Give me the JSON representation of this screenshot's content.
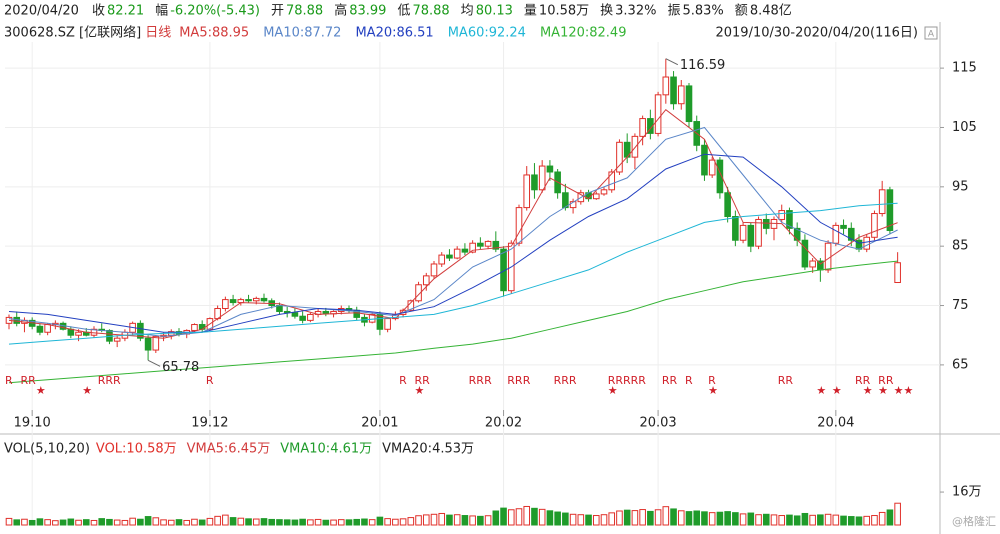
{
  "chart_data": {
    "type": "candlestick",
    "header": [
      {
        "label": "2020/04/20",
        "value": "",
        "color": "#222"
      },
      {
        "label": "收",
        "value": "82.21",
        "color": "#1a9a1a"
      },
      {
        "label": "幅",
        "value": "-6.20%(-5.43)",
        "color": "#1a9a1a"
      },
      {
        "label": "开",
        "value": "78.88",
        "color": "#1a9a1a"
      },
      {
        "label": "高",
        "value": "83.99",
        "color": "#1a9a1a"
      },
      {
        "label": "低",
        "value": "78.88",
        "color": "#1a9a1a"
      },
      {
        "label": "均",
        "value": "80.13",
        "color": "#1a9a1a"
      },
      {
        "label": "量",
        "value": "10.58万",
        "color": "#222"
      },
      {
        "label": "换",
        "value": "3.32%",
        "color": "#222"
      },
      {
        "label": "振",
        "value": "5.83%",
        "color": "#222"
      },
      {
        "label": "额",
        "value": "8.48亿",
        "color": "#222"
      }
    ],
    "symbol": "300628.SZ [亿联网络]",
    "period": "日线",
    "range_label": "2019/10/30-2020/04/20(116日)",
    "up_color": "#e0302a",
    "down_color": "#1f9b2a",
    "ylim": [
      57.4,
      119.4
    ],
    "yticks": [
      65,
      75,
      85,
      95,
      105,
      115
    ],
    "xlim": [
      0,
      121
    ],
    "xticks": [
      {
        "value": 3,
        "label": "19.10"
      },
      {
        "value": 26,
        "label": "19.12"
      },
      {
        "value": 48,
        "label": "20.01"
      },
      {
        "value": 64,
        "label": "20.02"
      },
      {
        "value": 84,
        "label": "20.03"
      },
      {
        "value": 107,
        "label": "20.04"
      }
    ],
    "candles": [
      [
        72,
        73.5,
        71,
        73
      ],
      [
        73,
        74,
        71.5,
        72
      ],
      [
        72,
        73,
        70.5,
        72.5
      ],
      [
        72.5,
        73,
        71,
        71.5
      ],
      [
        71.5,
        72,
        70,
        70.5
      ],
      [
        70.5,
        72,
        70,
        71.8
      ],
      [
        71.8,
        72.5,
        71,
        72
      ],
      [
        72,
        72.3,
        70.8,
        71
      ],
      [
        71,
        71.5,
        69.5,
        70
      ],
      [
        70,
        71,
        69,
        70.5
      ],
      [
        70.5,
        71.2,
        69.8,
        70
      ],
      [
        70,
        71.5,
        69.6,
        71
      ],
      [
        71,
        72,
        70.5,
        70.8
      ],
      [
        70.8,
        71,
        68.5,
        69
      ],
      [
        69,
        70,
        68,
        69.5
      ],
      [
        69.5,
        71,
        69,
        70.5
      ],
      [
        70.5,
        72.3,
        70,
        72
      ],
      [
        72,
        72.5,
        69,
        69.5
      ],
      [
        69.5,
        70,
        65.78,
        67.5
      ],
      [
        67.5,
        70,
        67,
        69.8
      ],
      [
        69.8,
        70.5,
        69,
        70
      ],
      [
        70,
        71,
        69.3,
        70.6
      ],
      [
        70.6,
        71.2,
        69.8,
        70.2
      ],
      [
        70.2,
        71,
        69.5,
        70.8
      ],
      [
        70.8,
        72,
        70.5,
        71.8
      ],
      [
        71.8,
        72.5,
        70.5,
        71
      ],
      [
        71,
        73,
        70.8,
        72.8
      ],
      [
        72.8,
        75,
        72.5,
        74.5
      ],
      [
        74.5,
        76.5,
        74,
        76
      ],
      [
        76,
        76.8,
        75,
        75.5
      ],
      [
        75.5,
        76.3,
        75,
        76
      ],
      [
        76,
        76.8,
        75.5,
        75.8
      ],
      [
        75.8,
        76.5,
        75.2,
        76.2
      ],
      [
        76.2,
        77,
        75.5,
        75.8
      ],
      [
        75.8,
        76.2,
        74.5,
        75
      ],
      [
        75,
        75.5,
        73.5,
        74
      ],
      [
        74,
        74.8,
        73,
        73.8
      ],
      [
        73.8,
        74.5,
        72.8,
        73.2
      ],
      [
        73.2,
        74,
        72,
        72.5
      ],
      [
        72.5,
        73.8,
        72.2,
        73.5
      ],
      [
        73.5,
        74.5,
        73,
        74
      ],
      [
        74,
        74.6,
        73.2,
        73.6
      ],
      [
        73.6,
        74.2,
        73,
        74
      ],
      [
        74,
        75,
        73.5,
        74.5
      ],
      [
        74.5,
        75,
        73.8,
        74.2
      ],
      [
        74.2,
        74.8,
        72.5,
        73
      ],
      [
        73,
        73.5,
        71.5,
        72.2
      ],
      [
        72.2,
        73.8,
        72,
        73.5
      ],
      [
        73.5,
        74,
        70,
        71
      ],
      [
        71,
        73,
        70.5,
        72.8
      ],
      [
        72.8,
        74,
        72.5,
        73.5
      ],
      [
        73.5,
        74.5,
        73,
        74.2
      ],
      [
        74.2,
        76,
        74,
        75.8
      ],
      [
        75.8,
        79,
        75.5,
        78.5
      ],
      [
        78.5,
        80.5,
        77.5,
        80
      ],
      [
        80,
        82.5,
        79.5,
        82
      ],
      [
        82,
        84,
        81.5,
        83.5
      ],
      [
        83.5,
        84.5,
        82.5,
        83
      ],
      [
        83,
        85,
        82.8,
        84.5
      ],
      [
        84.5,
        85.5,
        83.5,
        84
      ],
      [
        84,
        86,
        83.8,
        85.5
      ],
      [
        85.5,
        86.5,
        84.5,
        85
      ],
      [
        85,
        86,
        84.5,
        85.8
      ],
      [
        85.8,
        87.5,
        84,
        84.5
      ],
      [
        84.5,
        85,
        76.5,
        77.5
      ],
      [
        77.5,
        86,
        77,
        85.5
      ],
      [
        85.5,
        92,
        85,
        91.5
      ],
      [
        91.5,
        98.5,
        91,
        97
      ],
      [
        97,
        99,
        93,
        94.5
      ],
      [
        94.5,
        99.5,
        94,
        98.5
      ],
      [
        98.5,
        99.5,
        96,
        97.5
      ],
      [
        97.5,
        98,
        93,
        94
      ],
      [
        94,
        95.5,
        91,
        91.5
      ],
      [
        91.5,
        93,
        90.5,
        92.5
      ],
      [
        92.5,
        94.5,
        92,
        94
      ],
      [
        94,
        94.5,
        92.5,
        93
      ],
      [
        93,
        94.2,
        92.8,
        93.8
      ],
      [
        93.8,
        95,
        93.5,
        94.5
      ],
      [
        94.5,
        98,
        94,
        97.5
      ],
      [
        97.5,
        103,
        97,
        102.5
      ],
      [
        102.5,
        104,
        99,
        100
      ],
      [
        100,
        104,
        98,
        103.5
      ],
      [
        103.5,
        107,
        102,
        106.5
      ],
      [
        106.5,
        108,
        103,
        104
      ],
      [
        104,
        111,
        103.5,
        110.5
      ],
      [
        110.5,
        116.59,
        109,
        113.5
      ],
      [
        113.5,
        114.5,
        108,
        109
      ],
      [
        109,
        113,
        108,
        112
      ],
      [
        112,
        112.5,
        105,
        106
      ],
      [
        106,
        107,
        101,
        102
      ],
      [
        102,
        103,
        96,
        97
      ],
      [
        97,
        100,
        96.5,
        99.5
      ],
      [
        99.5,
        100,
        93,
        94
      ],
      [
        94,
        95,
        89,
        90
      ],
      [
        90,
        91,
        85,
        86
      ],
      [
        86,
        89,
        85.5,
        88.5
      ],
      [
        88.5,
        89,
        84,
        85
      ],
      [
        85,
        90,
        84.5,
        89.5
      ],
      [
        89.5,
        90.5,
        87,
        88
      ],
      [
        88,
        90,
        86,
        89.5
      ],
      [
        89.5,
        92,
        89,
        91
      ],
      [
        91,
        91.5,
        87,
        88
      ],
      [
        88,
        89,
        85,
        86
      ],
      [
        86,
        87,
        81,
        81.5
      ],
      [
        81.5,
        83,
        80.5,
        82.5
      ],
      [
        82.5,
        83,
        79,
        81
      ],
      [
        81,
        86,
        80.5,
        85.5
      ],
      [
        85.5,
        89,
        85,
        88.5
      ],
      [
        88.5,
        89.5,
        87,
        88
      ],
      [
        88,
        89,
        85,
        86
      ],
      [
        86,
        87,
        84,
        84.5
      ],
      [
        84.5,
        87,
        84,
        86.5
      ],
      [
        86.5,
        91,
        86,
        90.5
      ],
      [
        90.5,
        96,
        90,
        94.5
      ],
      [
        94.5,
        95,
        87,
        87.64
      ],
      [
        78.88,
        83.99,
        78.88,
        82.21
      ]
    ],
    "ma_x": [
      0,
      5,
      10,
      15,
      20,
      25,
      30,
      35,
      40,
      45,
      50,
      55,
      60,
      65,
      70,
      75,
      80,
      85,
      90,
      95,
      100,
      105,
      110,
      115
    ],
    "ma": [
      {
        "name": "MA5:88.95",
        "color": "#d23c3c",
        "values": [
          72.5,
          71.8,
          70.5,
          70,
          69.5,
          71,
          75.5,
          75.3,
          73.5,
          73.8,
          72.8,
          79.5,
          84.3,
          85,
          96.5,
          93,
          100,
          108,
          103,
          89,
          88.8,
          82,
          86.5,
          88.95
        ]
      },
      {
        "name": "MA10:87.72",
        "color": "#5a86c8",
        "values": [
          72.8,
          72,
          71,
          70.5,
          69.8,
          70.5,
          73.5,
          75,
          74.5,
          74,
          73.3,
          76,
          81.5,
          84.5,
          90,
          94,
          96.5,
          103,
          105,
          97,
          89,
          86,
          84.5,
          87.72
        ]
      },
      {
        "name": "MA20:86.51",
        "color": "#2340c0",
        "values": [
          74,
          73.5,
          72.5,
          71.5,
          70.5,
          70.5,
          72,
          73.5,
          74.5,
          74.2,
          73.5,
          74.8,
          78,
          81.5,
          86,
          90,
          93,
          98,
          100.5,
          100,
          95,
          89,
          85.5,
          86.51
        ]
      },
      {
        "name": "MA60:92.24",
        "color": "#1fb6d6",
        "values": [
          68.5,
          69,
          69.5,
          70,
          70.3,
          70.5,
          71,
          71.5,
          72,
          72.5,
          73,
          73.5,
          75,
          77,
          79,
          81,
          84,
          86.5,
          89,
          90,
          90.5,
          91,
          91.8,
          92.24
        ]
      },
      {
        "name": "MA120:82.49",
        "color": "#35b335",
        "values": [
          62,
          62.5,
          63,
          63.5,
          64,
          64.5,
          65,
          65.5,
          66,
          66.5,
          67,
          67.8,
          68.5,
          69.5,
          71,
          72.5,
          74,
          76,
          77.5,
          79,
          80,
          81,
          81.8,
          82.49
        ]
      }
    ],
    "annotations": [
      {
        "x": 85,
        "y": 116.59
      },
      {
        "x": 18,
        "y": 65.78
      }
    ],
    "signals": [
      {
        "x": 0,
        "text": "R"
      },
      {
        "x": 2,
        "text": "RR"
      },
      {
        "x": 4,
        "text": "★"
      },
      {
        "x": 10,
        "text": "★"
      },
      {
        "x": 12,
        "text": "RRR"
      },
      {
        "x": 26,
        "text": "R"
      },
      {
        "x": 51,
        "text": "R"
      },
      {
        "x": 53,
        "text": "RR"
      },
      {
        "x": 53,
        "text": "★"
      },
      {
        "x": 60,
        "text": "RR"
      },
      {
        "x": 62,
        "text": "R"
      },
      {
        "x": 65,
        "text": "RR"
      },
      {
        "x": 67,
        "text": "R"
      },
      {
        "x": 71,
        "text": "RRR"
      },
      {
        "x": 78,
        "text": "RRRRR"
      },
      {
        "x": 78,
        "text": "★"
      },
      {
        "x": 85,
        "text": "RR"
      },
      {
        "x": 88,
        "text": "R"
      },
      {
        "x": 91,
        "text": "R"
      },
      {
        "x": 91,
        "text": "★"
      },
      {
        "x": 100,
        "text": "RR"
      },
      {
        "x": 105,
        "text": "★"
      },
      {
        "x": 107,
        "text": "★"
      },
      {
        "x": 110,
        "text": "RR"
      },
      {
        "x": 111,
        "text": "★"
      },
      {
        "x": 113,
        "text": "RR"
      },
      {
        "x": 113,
        "text": "★"
      },
      {
        "x": 115,
        "text": "★★"
      }
    ],
    "volume_title": "VOL(5,10,20)",
    "volume_legend": [
      {
        "name": "VOL:10.58万",
        "color": "#e0302a"
      },
      {
        "name": "VMA5:6.45万",
        "color": "#d23c3c"
      },
      {
        "name": "VMA10:4.61万",
        "color": "#1f9b2a"
      },
      {
        "name": "VMA20:4.53万",
        "color": "#222"
      }
    ],
    "vylim": [
      0,
      34
    ],
    "vyticks": [
      {
        "value": 16,
        "label": "16万"
      }
    ],
    "volumes": [
      3.2,
      2.5,
      2.8,
      2.2,
      3,
      2.6,
      2.1,
      2.4,
      2.9,
      2.3,
      2.6,
      2.2,
      3.1,
      2.7,
      2.4,
      2.2,
      3.3,
      2.8,
      4.1,
      3.5,
      2.5,
      2.3,
      2.6,
      2.2,
      2.8,
      2.4,
      3.2,
      4.2,
      4.8,
      3.6,
      3.3,
      3,
      2.9,
      3.1,
      2.7,
      2.6,
      2.5,
      2.4,
      2.8,
      2.5,
      2.7,
      2.3,
      2.4,
      2.6,
      2.5,
      2.7,
      2.9,
      2.6,
      3.8,
      3.1,
      2.8,
      3,
      3.6,
      4.5,
      4.9,
      5.2,
      5.6,
      4.8,
      5,
      4.6,
      4.4,
      4.2,
      4.5,
      6.8,
      8.2,
      7.4,
      7.9,
      9,
      8.1,
      7.6,
      6.9,
      6.3,
      5.8,
      5.2,
      5,
      4.8,
      4.6,
      5,
      5.9,
      6.8,
      7.2,
      7,
      7.5,
      6.6,
      7.4,
      8.9,
      7.8,
      6.9,
      6.5,
      6.8,
      6.4,
      6,
      6.2,
      6.5,
      6,
      5.4,
      5.8,
      5,
      5.2,
      4.9,
      4.6,
      4.8,
      4.4,
      5.6,
      4.7,
      4.9,
      5.2,
      4.8,
      4.3,
      4.1,
      3.9,
      4.2,
      4.6,
      6.1,
      7.3,
      10.58
    ],
    "watermark": "@格隆汇"
  }
}
